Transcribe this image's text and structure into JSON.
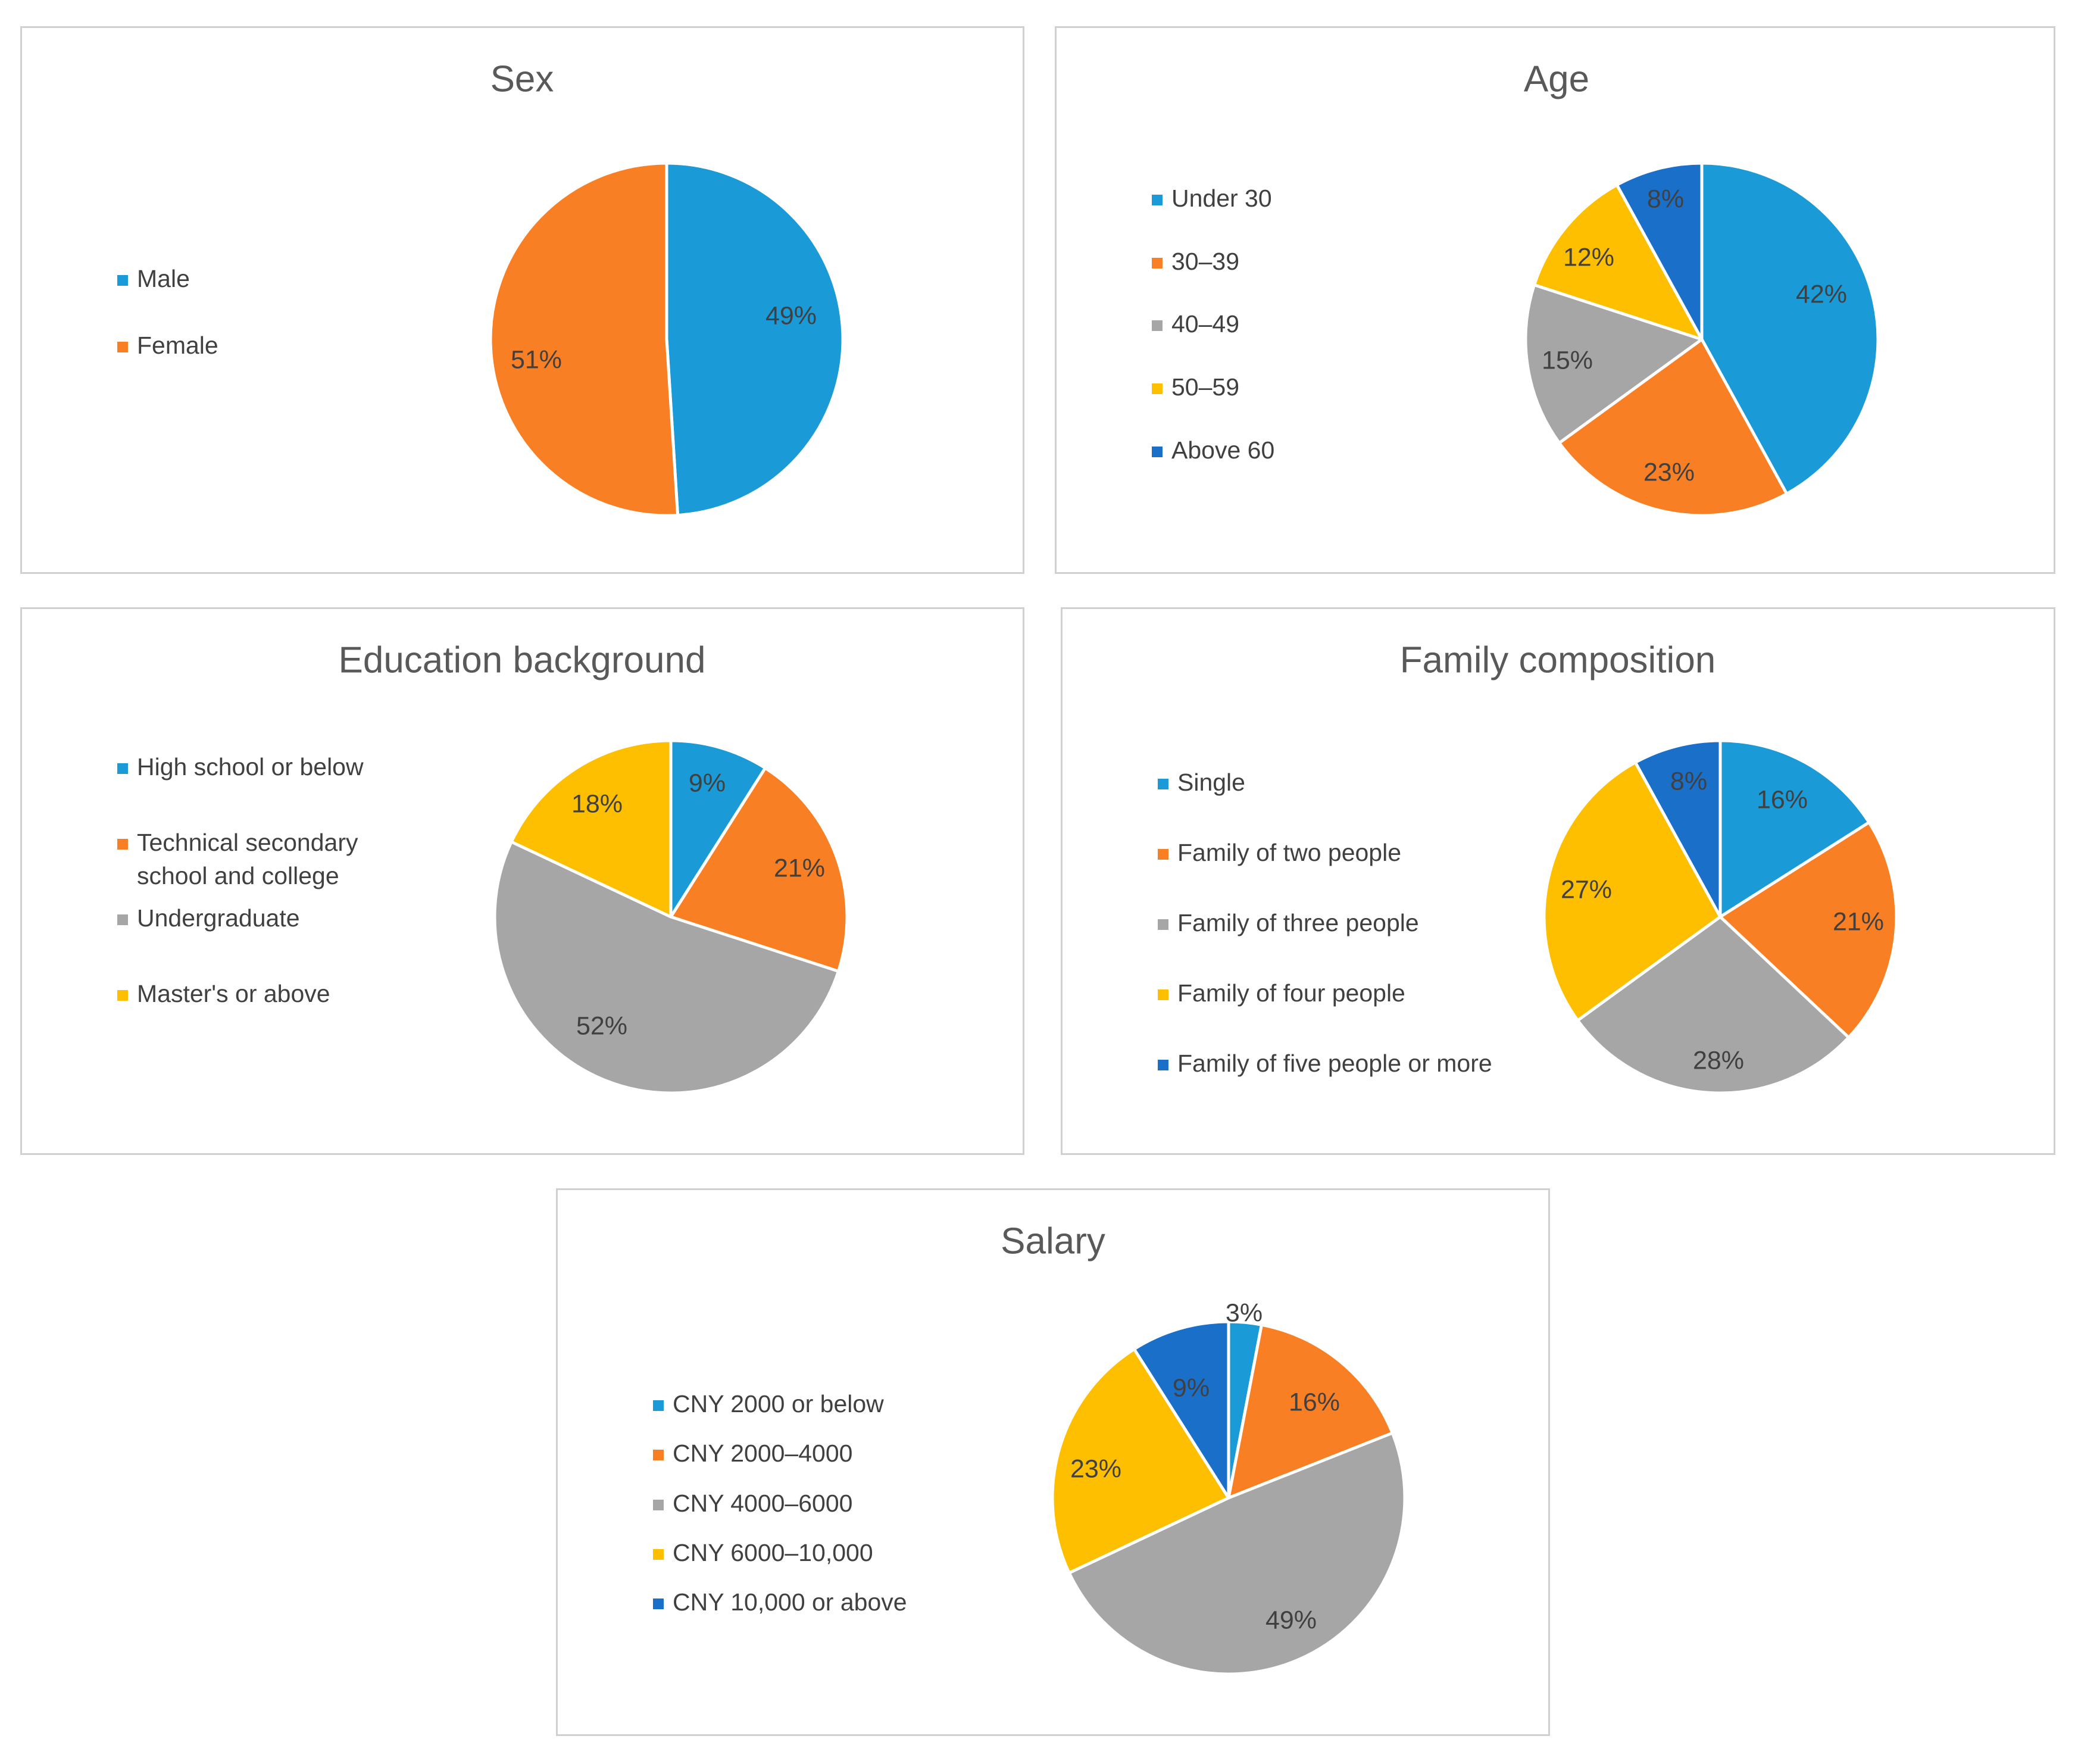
{
  "chart_data": [
    {
      "id": "sex",
      "type": "pie",
      "title": "Sex",
      "categories": [
        "Male",
        "Female"
      ],
      "values": [
        49,
        51
      ],
      "labels": [
        "49%",
        "51%"
      ],
      "colors": [
        "#1a9ad6",
        "#f97f24"
      ],
      "legend": "left"
    },
    {
      "id": "age",
      "type": "pie",
      "title": "Age",
      "categories": [
        "Under 30",
        "30–39",
        "40–49",
        "50–59",
        "Above 60"
      ],
      "values": [
        42,
        23,
        15,
        12,
        8
      ],
      "labels": [
        "42%",
        "23%",
        "15%",
        "12%",
        "8%"
      ],
      "colors": [
        "#1a9ad6",
        "#f97f24",
        "#a6a6a6",
        "#fdbf00",
        "#1a6fc9"
      ],
      "legend": "left"
    },
    {
      "id": "edu",
      "type": "pie",
      "title": "Education background",
      "categories": [
        "High school or below",
        "Technical secondary school and  college",
        "Undergraduate",
        "Master's or above"
      ],
      "legend_lines": [
        [
          "High school or below"
        ],
        [
          "Technical secondary",
          "school and  college"
        ],
        [
          "Undergraduate"
        ],
        [
          "Master's or above"
        ]
      ],
      "values": [
        9,
        21,
        52,
        18
      ],
      "labels": [
        "9%",
        "21%",
        "52%",
        "18%"
      ],
      "colors": [
        "#1a9ad6",
        "#f97f24",
        "#a6a6a6",
        "#fdbf00"
      ],
      "legend": "left"
    },
    {
      "id": "fam",
      "type": "pie",
      "title": "Family composition",
      "categories": [
        "Single",
        "Family of two people",
        "Family of three people",
        "Family of four people",
        "Family of five people or more"
      ],
      "values": [
        16,
        21,
        28,
        27,
        8
      ],
      "labels": [
        "16%",
        "21%",
        "28%",
        "27%",
        "8%"
      ],
      "colors": [
        "#1a9ad6",
        "#f97f24",
        "#a6a6a6",
        "#fdbf00",
        "#1a6fc9"
      ],
      "legend": "left"
    },
    {
      "id": "sal",
      "type": "pie",
      "title": "Salary",
      "categories": [
        "CNY 2000 or below",
        "CNY 2000–4000",
        "CNY 4000–6000",
        "CNY 6000–10,000",
        "CNY 10,000 or above"
      ],
      "values": [
        3,
        16,
        49,
        23,
        9
      ],
      "labels": [
        "3%",
        "16%",
        "49%",
        "23%",
        "9%"
      ],
      "colors": [
        "#1a9ad6",
        "#f97f24",
        "#a6a6a6",
        "#fdbf00",
        "#1a6fc9"
      ],
      "legend": "left"
    }
  ]
}
